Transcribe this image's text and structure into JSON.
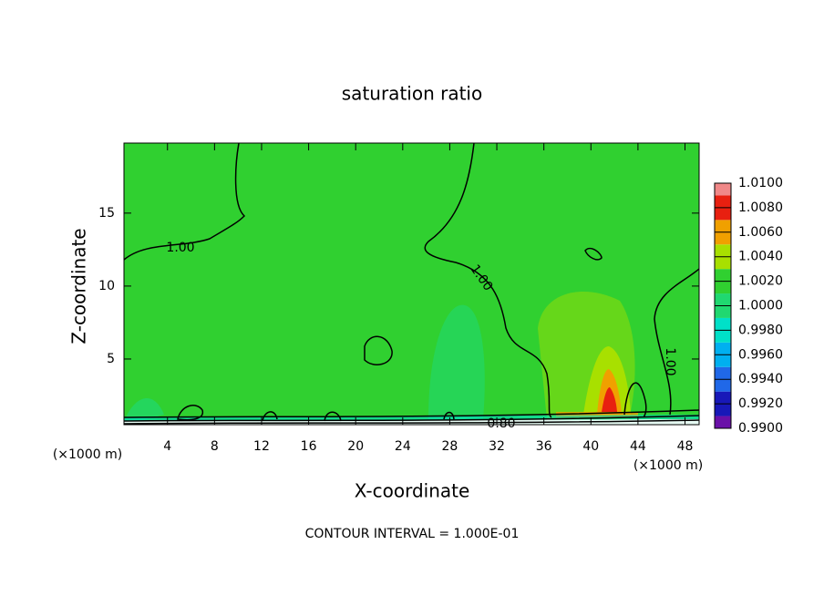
{
  "chart_data": {
    "type": "contour",
    "title": "saturation ratio",
    "x_label": "X-coordinate",
    "y_label": "Z-coordinate",
    "x_unit": "(×1000 m)",
    "y_unit": "(×1000 m)",
    "note": "CONTOUR INTERVAL = 1.000E-01",
    "xlim": [
      0.3,
      49.2
    ],
    "xticks": [
      4,
      8,
      12,
      16,
      20,
      24,
      28,
      32,
      36,
      40,
      44,
      48
    ],
    "ylim": [
      0.5,
      19.8
    ],
    "yticks": [
      5,
      10,
      15
    ],
    "contour_labels": [
      "1.00",
      "1.00",
      "1.00",
      "0.80"
    ],
    "colorbar": {
      "ticks": [
        {
          "value": 0.99,
          "label": "0.9900"
        },
        {
          "value": 0.992,
          "label": "0.9920"
        },
        {
          "value": 0.994,
          "label": "0.9940"
        },
        {
          "value": 0.996,
          "label": "0.9960"
        },
        {
          "value": 0.998,
          "label": "0.9980"
        },
        {
          "value": 1.0,
          "label": "1.0000"
        },
        {
          "value": 1.002,
          "label": "1.0020"
        },
        {
          "value": 1.004,
          "label": "1.0040"
        },
        {
          "value": 1.006,
          "label": "1.0060"
        },
        {
          "value": 1.008,
          "label": "1.0080"
        },
        {
          "value": 1.01,
          "label": "1.0100"
        }
      ],
      "colors": [
        "#6a10a8",
        "#1818b8",
        "#2068e8",
        "#00b0f0",
        "#00e0c8",
        "#20d870",
        "#30d030",
        "#a8e000",
        "#f0a000",
        "#e82010",
        "#f08888"
      ]
    }
  }
}
